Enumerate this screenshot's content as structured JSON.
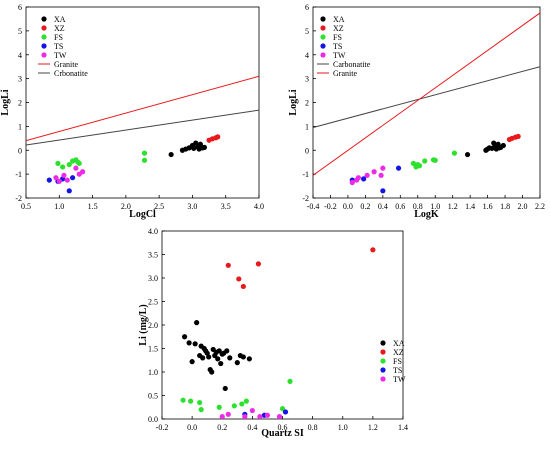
{
  "chart_data": [
    {
      "type": "scatter",
      "xlabel": "LogCl",
      "ylabel": "LogLi",
      "xlim": [
        0.5,
        4.0
      ],
      "ylim": [
        -2,
        6
      ],
      "xticks": [
        "0.5",
        "1.0",
        "1.5",
        "2.0",
        "2.5",
        "3.0",
        "3.5",
        "4.0"
      ],
      "yticks": [
        "-2",
        "-1",
        "0",
        "1",
        "2",
        "3",
        "4",
        "5",
        "6"
      ],
      "legend_position": "top-left",
      "series": [
        {
          "name": "XA",
          "color": "#000000",
          "points": [
            [
              2.68,
              -0.18
            ],
            [
              2.85,
              0.0
            ],
            [
              2.9,
              0.05
            ],
            [
              2.95,
              0.1
            ],
            [
              3.0,
              0.2
            ],
            [
              3.02,
              0.08
            ],
            [
              3.05,
              0.3
            ],
            [
              3.08,
              0.15
            ],
            [
              3.1,
              0.05
            ],
            [
              3.12,
              0.25
            ],
            [
              3.15,
              0.1
            ],
            [
              3.18,
              0.12
            ]
          ]
        },
        {
          "name": "XZ",
          "color": "#e8191c",
          "points": [
            [
              3.25,
              0.42
            ],
            [
              3.3,
              0.48
            ],
            [
              3.35,
              0.52
            ],
            [
              3.38,
              0.56
            ]
          ]
        },
        {
          "name": "FS",
          "color": "#2ee02e",
          "points": [
            [
              0.98,
              -0.55
            ],
            [
              1.05,
              -0.7
            ],
            [
              1.15,
              -0.6
            ],
            [
              1.2,
              -0.45
            ],
            [
              1.25,
              -0.4
            ],
            [
              1.28,
              -0.5
            ],
            [
              1.3,
              -0.55
            ],
            [
              2.28,
              -0.12
            ],
            [
              2.28,
              -0.42
            ]
          ]
        },
        {
          "name": "TS",
          "color": "#1414e6",
          "points": [
            [
              0.85,
              -1.25
            ],
            [
              0.98,
              -1.3
            ],
            [
              1.05,
              -1.2
            ],
            [
              1.15,
              -1.7
            ],
            [
              1.2,
              -1.15
            ]
          ]
        },
        {
          "name": "TW",
          "color": "#ee2ae6",
          "points": [
            [
              0.95,
              -1.15
            ],
            [
              1.0,
              -1.3
            ],
            [
              1.07,
              -1.05
            ],
            [
              1.12,
              -1.25
            ],
            [
              1.25,
              -0.75
            ],
            [
              1.3,
              -1.0
            ],
            [
              1.35,
              -0.9
            ]
          ]
        }
      ],
      "lines": [
        {
          "name": "Granite",
          "color": "#e8191c",
          "from": [
            0.5,
            0.4
          ],
          "to": [
            4.0,
            3.1
          ]
        },
        {
          "name": "Crbonatite",
          "color": "#444444",
          "from": [
            0.5,
            0.22
          ],
          "to": [
            4.0,
            1.68
          ]
        }
      ]
    },
    {
      "type": "scatter",
      "xlabel": "LogK",
      "ylabel": "LogLi",
      "xlim": [
        -0.4,
        2.2
      ],
      "ylim": [
        -2,
        6
      ],
      "xticks": [
        "-0.4",
        "-0.2",
        "0.0",
        "0.2",
        "0.4",
        "0.6",
        "0.8",
        "1.0",
        "1.2",
        "1.4",
        "1.6",
        "1.8",
        "2.0",
        "2.2"
      ],
      "yticks": [
        "-2",
        "-1",
        "0",
        "1",
        "2",
        "3",
        "4",
        "5",
        "6"
      ],
      "legend_position": "top-left",
      "series": [
        {
          "name": "XA",
          "color": "#000000",
          "points": [
            [
              1.37,
              -0.18
            ],
            [
              1.58,
              0.0
            ],
            [
              1.6,
              0.05
            ],
            [
              1.62,
              0.1
            ],
            [
              1.65,
              0.08
            ],
            [
              1.67,
              0.3
            ],
            [
              1.68,
              0.15
            ],
            [
              1.7,
              0.05
            ],
            [
              1.72,
              0.25
            ],
            [
              1.73,
              0.1
            ],
            [
              1.75,
              0.12
            ],
            [
              1.78,
              0.2
            ]
          ]
        },
        {
          "name": "XZ",
          "color": "#e8191c",
          "points": [
            [
              1.85,
              0.45
            ],
            [
              1.88,
              0.5
            ],
            [
              1.92,
              0.55
            ],
            [
              1.95,
              0.58
            ]
          ]
        },
        {
          "name": "FS",
          "color": "#2ee02e",
          "points": [
            [
              0.75,
              -0.55
            ],
            [
              0.78,
              -0.7
            ],
            [
              0.8,
              -0.6
            ],
            [
              0.82,
              -0.65
            ],
            [
              0.88,
              -0.45
            ],
            [
              0.98,
              -0.4
            ],
            [
              1.0,
              -0.42
            ],
            [
              1.22,
              -0.12
            ]
          ]
        },
        {
          "name": "TS",
          "color": "#1414e6",
          "points": [
            [
              0.05,
              -1.25
            ],
            [
              0.18,
              -1.2
            ],
            [
              0.4,
              -1.7
            ],
            [
              0.58,
              -0.75
            ]
          ]
        },
        {
          "name": "TW",
          "color": "#ee2ae6",
          "points": [
            [
              0.05,
              -1.35
            ],
            [
              0.1,
              -1.25
            ],
            [
              0.12,
              -1.15
            ],
            [
              0.22,
              -1.05
            ],
            [
              0.3,
              -0.9
            ],
            [
              0.38,
              -1.05
            ],
            [
              0.4,
              -0.75
            ]
          ]
        }
      ],
      "lines": [
        {
          "name": "Carbonatite",
          "color": "#444444",
          "from": [
            -0.4,
            0.95
          ],
          "to": [
            2.2,
            3.5
          ]
        },
        {
          "name": "Granite",
          "color": "#e8191c",
          "from": [
            -0.4,
            -1.05
          ],
          "to": [
            2.2,
            5.75
          ]
        }
      ]
    },
    {
      "type": "scatter",
      "xlabel": "Quartz SI",
      "ylabel": "Li (mg/L)",
      "xlim": [
        -0.2,
        1.4
      ],
      "ylim": [
        0,
        4.0
      ],
      "xticks": [
        "-0.2",
        "0.0",
        "0.2",
        "0.4",
        "0.6",
        "0.8",
        "1.0",
        "1.2",
        "1.4"
      ],
      "yticks": [
        "0.0",
        "0.5",
        "1.0",
        "1.5",
        "2.0",
        "2.5",
        "3.0",
        "3.5",
        "4.0"
      ],
      "legend_position": "bottom-right",
      "series": [
        {
          "name": "XA",
          "color": "#000000",
          "points": [
            [
              -0.05,
              1.75
            ],
            [
              -0.02,
              1.62
            ],
            [
              0.0,
              1.22
            ],
            [
              0.02,
              1.6
            ],
            [
              0.03,
              2.05
            ],
            [
              0.05,
              1.35
            ],
            [
              0.06,
              1.55
            ],
            [
              0.07,
              1.3
            ],
            [
              0.08,
              1.5
            ],
            [
              0.09,
              1.45
            ],
            [
              0.1,
              1.4
            ],
            [
              0.11,
              1.32
            ],
            [
              0.12,
              1.05
            ],
            [
              0.13,
              1.0
            ],
            [
              0.14,
              1.48
            ],
            [
              0.15,
              1.35
            ],
            [
              0.16,
              1.42
            ],
            [
              0.17,
              1.28
            ],
            [
              0.18,
              1.45
            ],
            [
              0.19,
              1.18
            ],
            [
              0.2,
              1.38
            ],
            [
              0.21,
              1.4
            ],
            [
              0.22,
              0.65
            ],
            [
              0.23,
              1.45
            ],
            [
              0.25,
              1.3
            ],
            [
              0.3,
              1.2
            ],
            [
              0.32,
              1.35
            ],
            [
              0.34,
              1.32
            ],
            [
              0.38,
              1.28
            ]
          ]
        },
        {
          "name": "XZ",
          "color": "#e8191c",
          "points": [
            [
              0.24,
              3.27
            ],
            [
              0.31,
              2.98
            ],
            [
              0.34,
              2.82
            ],
            [
              0.44,
              3.3
            ],
            [
              1.2,
              3.6
            ]
          ]
        },
        {
          "name": "FS",
          "color": "#2ee02e",
          "points": [
            [
              -0.06,
              0.4
            ],
            [
              -0.01,
              0.38
            ],
            [
              0.05,
              0.35
            ],
            [
              0.06,
              0.2
            ],
            [
              0.18,
              0.25
            ],
            [
              0.28,
              0.28
            ],
            [
              0.33,
              0.32
            ],
            [
              0.36,
              0.38
            ],
            [
              0.6,
              0.22
            ],
            [
              0.65,
              0.8
            ]
          ]
        },
        {
          "name": "TS",
          "color": "#1414e6",
          "points": [
            [
              0.35,
              0.1
            ],
            [
              0.48,
              0.08
            ],
            [
              0.62,
              0.15
            ]
          ]
        },
        {
          "name": "TW",
          "color": "#ee2ae6",
          "points": [
            [
              0.2,
              0.05
            ],
            [
              0.24,
              0.1
            ],
            [
              0.35,
              0.05
            ],
            [
              0.4,
              0.18
            ],
            [
              0.45,
              0.05
            ],
            [
              0.5,
              0.08
            ],
            [
              0.58,
              0.05
            ]
          ]
        }
      ]
    }
  ]
}
